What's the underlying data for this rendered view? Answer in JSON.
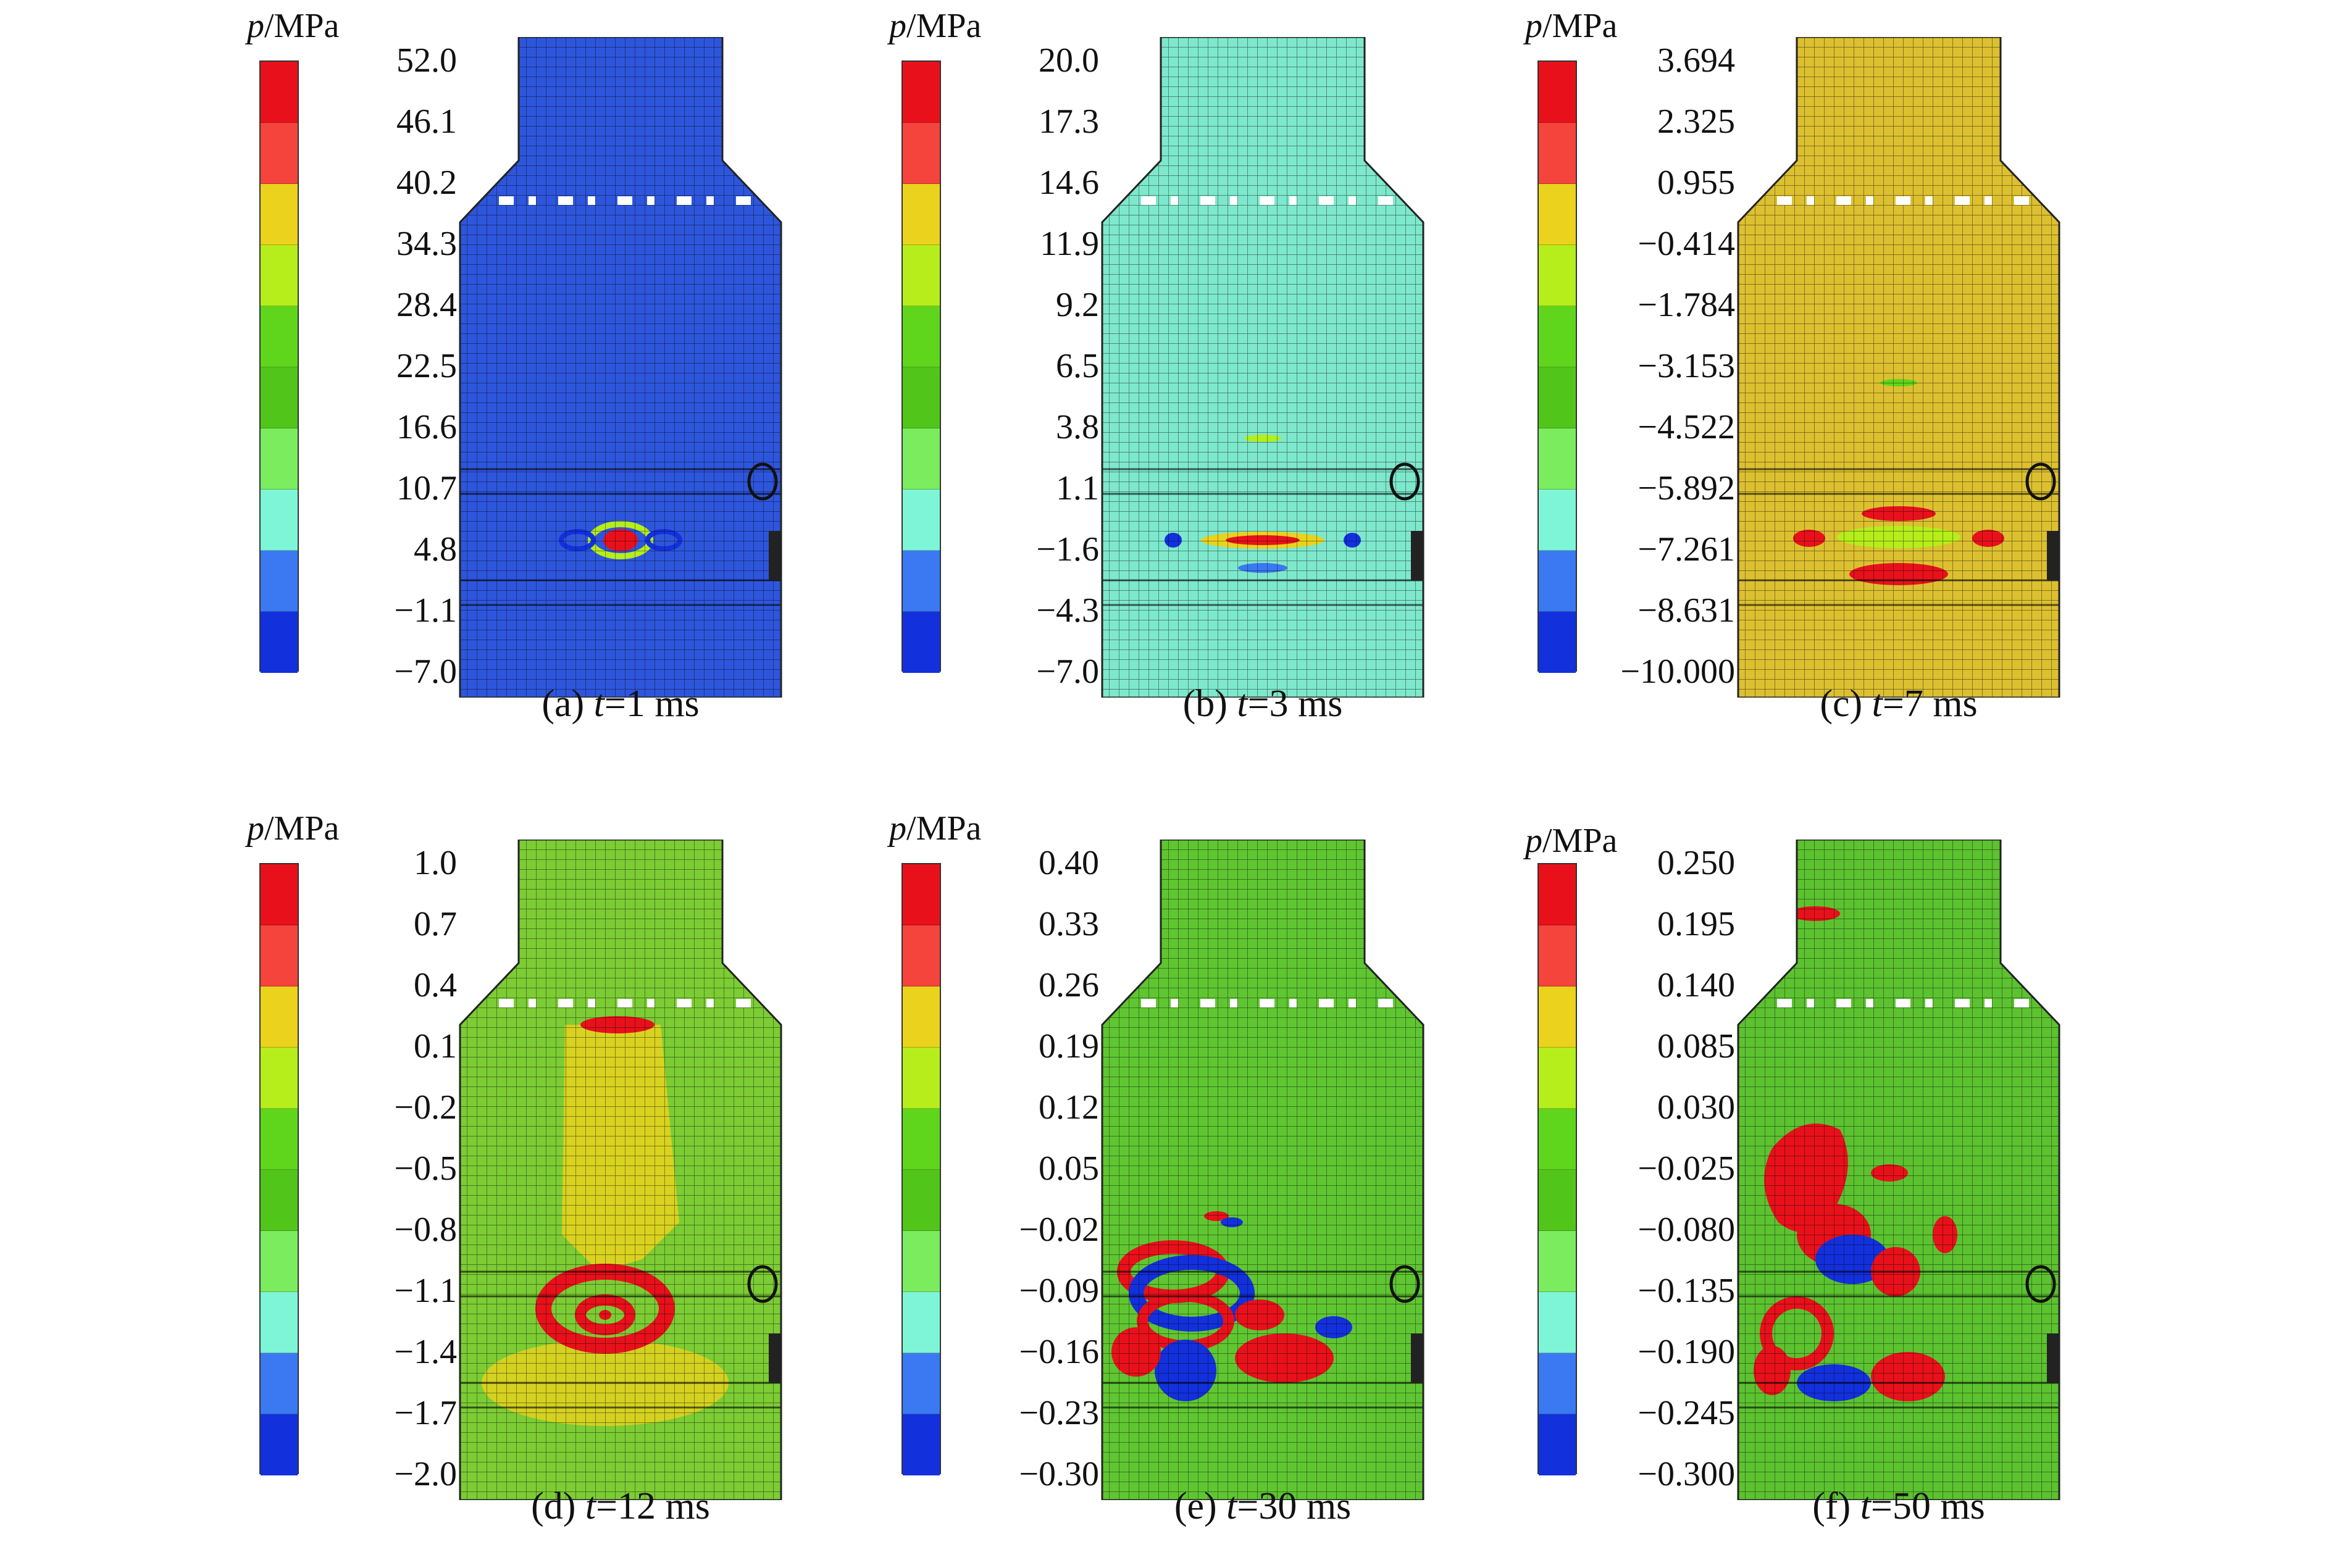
{
  "figure": {
    "unit_symbol": "p",
    "unit_suffix": "/MPa",
    "colorbar_colors": [
      "#e8111b",
      "#f5443c",
      "#ead21d",
      "#b5ee1a",
      "#5fd61c",
      "#52c51a",
      "#7bec5e",
      "#7ef5d6",
      "#3a79f1",
      "#1330dd"
    ],
    "panels": [
      {
        "id": "a",
        "caption_prefix": "(a) ",
        "caption_var": "t",
        "caption_suffix": "=1 ms",
        "ticks": [
          "52.0",
          "46.1",
          "40.2",
          "34.3",
          "28.4",
          "22.5",
          "16.6",
          "10.7",
          "4.8",
          "−1.1",
          "−7.0"
        ],
        "base_color": "#2e56dc",
        "cone_top_offset": 0
      },
      {
        "id": "b",
        "caption_prefix": "(b) ",
        "caption_var": "t",
        "caption_suffix": "=3 ms",
        "ticks": [
          "20.0",
          "17.3",
          "14.6",
          "11.9",
          "9.2",
          "6.5",
          "3.8",
          "1.1",
          "−1.6",
          "−4.3",
          "−7.0"
        ],
        "base_color": "#7ee8cc",
        "cone_top_offset": 0
      },
      {
        "id": "c",
        "caption_prefix": "(c) ",
        "caption_var": "t",
        "caption_suffix": "=7 ms",
        "ticks": [
          "3.694",
          "2.325",
          "0.955",
          "−0.414",
          "−1.784",
          "−3.153",
          "−4.522",
          "−5.892",
          "−7.261",
          "−8.631",
          "−10.000"
        ],
        "base_color": "#dcc030",
        "cone_top_offset": 0
      },
      {
        "id": "d",
        "caption_prefix": "(d) ",
        "caption_var": "t",
        "caption_suffix": "=12 ms",
        "ticks": [
          "1.0",
          "0.7",
          "0.4",
          "0.1",
          "−0.2",
          "−0.5",
          "−0.8",
          "−1.1",
          "−1.4",
          "−1.7",
          "−2.0"
        ],
        "base_color": "#7ccc34",
        "cone_top_offset": 0
      },
      {
        "id": "e",
        "caption_prefix": "(e) ",
        "caption_var": "t",
        "caption_suffix": "=30 ms",
        "ticks": [
          "0.40",
          "0.33",
          "0.26",
          "0.19",
          "0.12",
          "0.05",
          "−0.02",
          "−0.09",
          "−0.16",
          "−0.23",
          "−0.30"
        ],
        "base_color": "#5fc631",
        "cone_top_offset": 0
      },
      {
        "id": "f",
        "caption_prefix": "(f) ",
        "caption_var": "t",
        "caption_suffix": "=50 ms",
        "ticks": [
          "0.250",
          "0.195",
          "0.140",
          "0.085",
          "0.030",
          "−0.025",
          "−0.080",
          "−0.135",
          "−0.190",
          "−0.245",
          "−0.300"
        ],
        "base_color": "#5cc230",
        "cone_top_offset": 0
      }
    ]
  }
}
